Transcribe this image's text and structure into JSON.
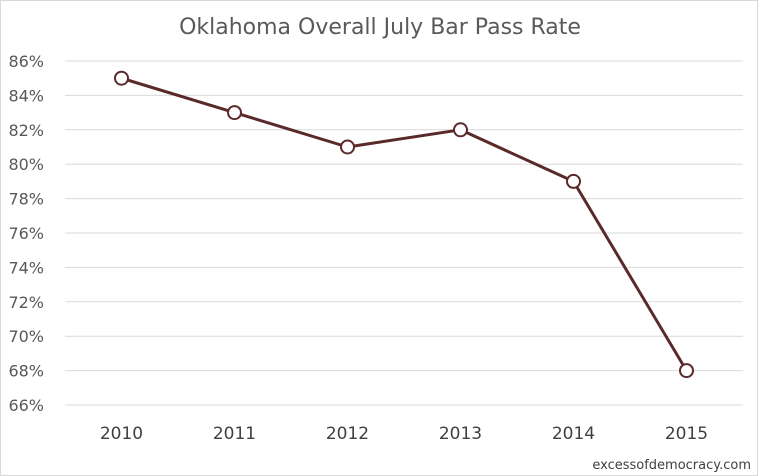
{
  "chart_data": {
    "type": "line",
    "title": "Oklahoma Overall July Bar Pass Rate",
    "categories": [
      "2010",
      "2011",
      "2012",
      "2013",
      "2014",
      "2015"
    ],
    "series": [
      {
        "values": [
          85,
          83,
          81,
          82,
          79,
          68
        ]
      }
    ],
    "ylim": [
      66,
      86
    ],
    "y_ticks": [
      86,
      84,
      82,
      80,
      78,
      76,
      74,
      72,
      70,
      68,
      66
    ],
    "y_tick_labels": [
      "86%",
      "84%",
      "82%",
      "80%",
      "78%",
      "76%",
      "74%",
      "72%",
      "70%",
      "68%",
      "66%"
    ],
    "xlabel": "",
    "ylabel": "",
    "grid": true,
    "legend": "none",
    "colors": {
      "line": "#5a2a2a",
      "marker_fill": "#ffffff",
      "grid": "#d9d9d9",
      "text": "#595959"
    }
  },
  "watermark": "excessofdemocracy.com"
}
